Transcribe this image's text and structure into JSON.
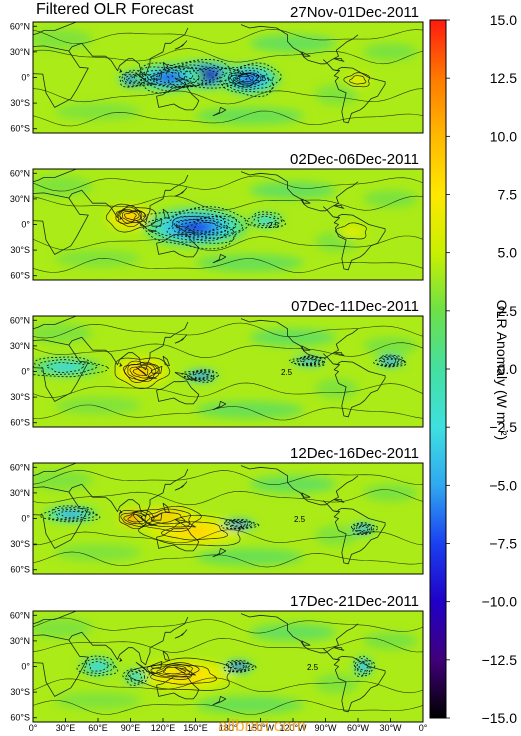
{
  "title": "Filtered OLR  Forecast",
  "watermark": "allbrari.com",
  "chart_data": {
    "type": "heatmap",
    "title": "Filtered OLR  Forecast",
    "colorbar": {
      "label": "OLR Anomaly (W m⁻²)",
      "min": -15.0,
      "max": 15.0,
      "ticks": [
        "15.0",
        "12.5",
        "10.0",
        "7.5",
        "5.0",
        "2.5",
        "0.0",
        "−2.5",
        "−5.0",
        "−7.5",
        "−10.0",
        "−12.5",
        "−15.0"
      ],
      "colors": [
        "#ff1a10",
        "#ff7a00",
        "#ffb800",
        "#ffe800",
        "#c8f000",
        "#6ee048",
        "#44e0a0",
        "#3fe0e0",
        "#30a8f0",
        "#1a40f0",
        "#2000c8",
        "#40007a",
        "#000000"
      ]
    },
    "y_ticks": [
      "60°N",
      "30°N",
      "0°",
      "30°S",
      "60°S"
    ],
    "x_ticks": [
      "0°",
      "30°E",
      "60°E",
      "90°E",
      "120°E",
      "150°E",
      "180°",
      "150°W",
      "120°W",
      "90°W",
      "60°W",
      "30°W",
      "0°"
    ],
    "contour_label": "2.5",
    "panels": [
      {
        "period": "27Nov-01Dec-2011",
        "features": [
          {
            "lon": 155,
            "lat": 3,
            "value": -15.0,
            "rx": 35,
            "ry": 14
          },
          {
            "lon": 95,
            "lat": -2,
            "value": -14.0,
            "rx": 14,
            "ry": 8
          },
          {
            "lon": 125,
            "lat": 0,
            "value": -9.0,
            "rx": 28,
            "ry": 14
          },
          {
            "lon": 195,
            "lat": -2,
            "value": 13.0,
            "rx": 13,
            "ry": 7
          },
          {
            "lon": 200,
            "lat": -2,
            "value": -8.0,
            "rx": 25,
            "ry": 16
          },
          {
            "lon": 300,
            "lat": -3,
            "value": 8.0,
            "rx": 10,
            "ry": 7
          }
        ]
      },
      {
        "period": "02Dec-06Dec-2011",
        "features": [
          {
            "lon": 90,
            "lat": 10,
            "value": 15.0,
            "rx": 11,
            "ry": 8
          },
          {
            "lon": 90,
            "lat": 8,
            "value": 10.0,
            "rx": 20,
            "ry": 13
          },
          {
            "lon": 160,
            "lat": -3,
            "value": -15.0,
            "rx": 28,
            "ry": 12
          },
          {
            "lon": 150,
            "lat": -3,
            "value": -9.0,
            "rx": 42,
            "ry": 20
          },
          {
            "lon": 295,
            "lat": -8,
            "value": 7.0,
            "rx": 12,
            "ry": 8
          },
          {
            "lon": 215,
            "lat": 5,
            "value": -3.5,
            "rx": 15,
            "ry": 8
          }
        ]
      },
      {
        "period": "07Dec-11Dec-2011",
        "features": [
          {
            "lon": 100,
            "lat": 0,
            "value": 15.0,
            "rx": 14,
            "ry": 10
          },
          {
            "lon": 100,
            "lat": 0,
            "value": 10.0,
            "rx": 22,
            "ry": 15
          },
          {
            "lon": 155,
            "lat": -5,
            "value": -10.0,
            "rx": 14,
            "ry": 6
          },
          {
            "lon": 255,
            "lat": 12,
            "value": -8.0,
            "rx": 14,
            "ry": 5
          },
          {
            "lon": 330,
            "lat": 12,
            "value": -8.0,
            "rx": 12,
            "ry": 6
          },
          {
            "lon": 30,
            "lat": 5,
            "value": -3.5,
            "rx": 30,
            "ry": 10
          }
        ]
      },
      {
        "period": "12Dec-16Dec-2011",
        "features": [
          {
            "lon": 95,
            "lat": 0,
            "value": 15.0,
            "rx": 14,
            "ry": 9
          },
          {
            "lon": 125,
            "lat": 0,
            "value": 11.0,
            "rx": 26,
            "ry": 12
          },
          {
            "lon": 150,
            "lat": -15,
            "value": 9.0,
            "rx": 40,
            "ry": 15
          },
          {
            "lon": 35,
            "lat": 5,
            "value": -7.0,
            "rx": 22,
            "ry": 8
          },
          {
            "lon": 190,
            "lat": -7,
            "value": -11.0,
            "rx": 14,
            "ry": 5
          },
          {
            "lon": 305,
            "lat": -12,
            "value": -8.0,
            "rx": 10,
            "ry": 6
          }
        ]
      },
      {
        "period": "17Dec-21Dec-2011",
        "features": [
          {
            "lon": 130,
            "lat": -5,
            "value": 14.0,
            "rx": 20,
            "ry": 8
          },
          {
            "lon": 140,
            "lat": -10,
            "value": 9.0,
            "rx": 40,
            "ry": 16
          },
          {
            "lon": 60,
            "lat": 0,
            "value": -4.0,
            "rx": 15,
            "ry": 10
          },
          {
            "lon": 190,
            "lat": 0,
            "value": -12.0,
            "rx": 12,
            "ry": 6
          },
          {
            "lon": 305,
            "lat": 0,
            "value": -6.0,
            "rx": 8,
            "ry": 10
          },
          {
            "lon": 95,
            "lat": -12,
            "value": -4.0,
            "rx": 10,
            "ry": 8
          }
        ]
      }
    ]
  }
}
